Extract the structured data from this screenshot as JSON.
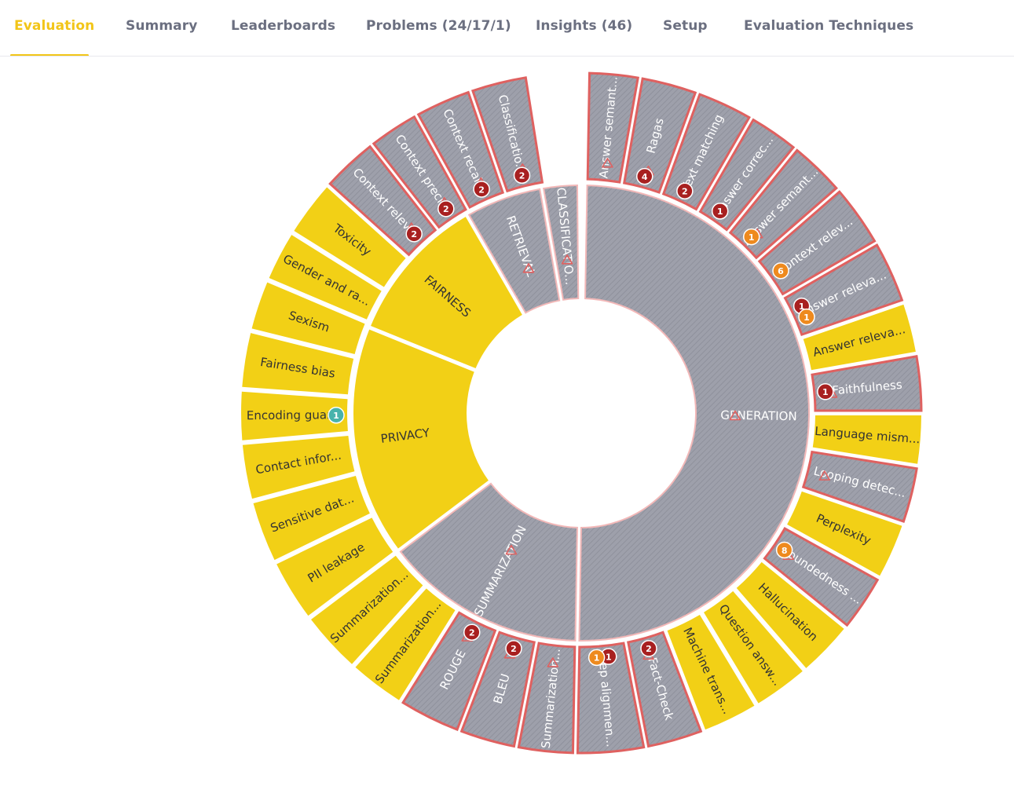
{
  "tabs": [
    {
      "label": "Evaluation",
      "active": true
    },
    {
      "label": "Summary",
      "active": false
    },
    {
      "label": "Leaderboards",
      "active": false
    },
    {
      "label": "Problems (24/17/1)",
      "active": false
    },
    {
      "label": "Insights (46)",
      "active": false
    },
    {
      "label": "Setup",
      "active": false
    },
    {
      "label": "Evaluation Techniques",
      "active": false
    }
  ],
  "colors": {
    "accent": "#f2c518",
    "yellow_fill": "#f2d016",
    "grey_fill": "#9ea0ab",
    "problem_border": "#df6160",
    "badge_red": "#a82020",
    "badge_orange": "#ee8a1e",
    "badge_teal": "#48b3ac",
    "tab_text": "#6b6f80"
  },
  "sunburst": {
    "inner": [
      {
        "label": "GENERATION",
        "status": "problem",
        "warning": true
      },
      {
        "label": "SUMMARIZATION",
        "status": "problem",
        "warning": true
      },
      {
        "label": "PRIVACY",
        "status": "ok",
        "warning": false
      },
      {
        "label": "FAIRNESS",
        "status": "ok",
        "warning": false
      },
      {
        "label": "RETRIEVAL",
        "status": "problem",
        "warning": true
      },
      {
        "label": "CLASSIFICATIO...",
        "status": "problem",
        "warning": true
      }
    ],
    "outer": [
      {
        "label": "Answer semant...",
        "parent": "GENERATION",
        "status": "problem",
        "warning": true,
        "badges": []
      },
      {
        "label": "Ragas",
        "parent": "GENERATION",
        "status": "problem",
        "warning": true,
        "badges": [
          {
            "value": "4",
            "color": "red"
          }
        ]
      },
      {
        "label": "Text matching",
        "parent": "GENERATION",
        "status": "problem",
        "warning": false,
        "badges": [
          {
            "value": "2",
            "color": "red"
          }
        ]
      },
      {
        "label": "Answer correc...",
        "parent": "GENERATION",
        "status": "problem",
        "warning": false,
        "badges": [
          {
            "value": "1",
            "color": "red"
          }
        ]
      },
      {
        "label": "Answer semant...",
        "parent": "GENERATION",
        "status": "problem",
        "warning": true,
        "badges": [
          {
            "value": "1",
            "color": "orange"
          }
        ]
      },
      {
        "label": "Context relev...",
        "parent": "GENERATION",
        "status": "problem",
        "warning": false,
        "badges": [
          {
            "value": "6",
            "color": "orange"
          }
        ]
      },
      {
        "label": "Answer releva...",
        "parent": "GENERATION",
        "status": "problem",
        "warning": false,
        "badges": [
          {
            "value": "1",
            "color": "red"
          },
          {
            "value": "1",
            "color": "orange"
          }
        ]
      },
      {
        "label": "Answer releva...",
        "parent": "GENERATION",
        "status": "ok",
        "warning": false,
        "badges": []
      },
      {
        "label": "Faithfulness",
        "parent": "GENERATION",
        "status": "problem",
        "warning": true,
        "badges": [
          {
            "value": "1",
            "color": "red"
          }
        ]
      },
      {
        "label": "Language mism...",
        "parent": "GENERATION",
        "status": "ok",
        "warning": false,
        "badges": []
      },
      {
        "label": "Looping detec...",
        "parent": "GENERATION",
        "status": "problem",
        "warning": true,
        "badges": []
      },
      {
        "label": "Perplexity",
        "parent": "GENERATION",
        "status": "ok",
        "warning": false,
        "badges": []
      },
      {
        "label": "Groundedness ...",
        "parent": "GENERATION",
        "status": "problem",
        "warning": true,
        "badges": [
          {
            "value": "8",
            "color": "orange"
          }
        ]
      },
      {
        "label": "Hallucination",
        "parent": "GENERATION",
        "status": "ok",
        "warning": false,
        "badges": []
      },
      {
        "label": "Question answ...",
        "parent": "GENERATION",
        "status": "ok",
        "warning": false,
        "badges": []
      },
      {
        "label": "Machine trans...",
        "parent": "GENERATION",
        "status": "ok",
        "warning": false,
        "badges": []
      },
      {
        "label": "Fact-Check",
        "parent": "GENERATION",
        "status": "problem",
        "warning": true,
        "badges": [
          {
            "value": "2",
            "color": "red"
          }
        ]
      },
      {
        "label": "Step alignmen...",
        "parent": "GENERATION",
        "status": "problem",
        "warning": false,
        "badges": [
          {
            "value": "1",
            "color": "red"
          },
          {
            "value": "1",
            "color": "orange"
          }
        ]
      },
      {
        "label": "Summarization...",
        "parent": "SUMMARIZATION",
        "status": "problem",
        "warning": true,
        "badges": []
      },
      {
        "label": "BLEU",
        "parent": "SUMMARIZATION",
        "status": "problem",
        "warning": true,
        "badges": [
          {
            "value": "2",
            "color": "red"
          }
        ]
      },
      {
        "label": "ROUGE",
        "parent": "SUMMARIZATION",
        "status": "problem",
        "warning": true,
        "badges": [
          {
            "value": "2",
            "color": "red"
          }
        ]
      },
      {
        "label": "Summarization...",
        "parent": "SUMMARIZATION",
        "status": "ok",
        "warning": false,
        "badges": []
      },
      {
        "label": "Summarization...",
        "parent": "SUMMARIZATION",
        "status": "ok",
        "warning": false,
        "badges": []
      },
      {
        "label": "PII leakage",
        "parent": "PRIVACY",
        "status": "ok",
        "warning": false,
        "badges": []
      },
      {
        "label": "Sensitive dat...",
        "parent": "PRIVACY",
        "status": "ok",
        "warning": false,
        "badges": []
      },
      {
        "label": "Contact infor...",
        "parent": "PRIVACY",
        "status": "ok",
        "warning": false,
        "badges": []
      },
      {
        "label": "Encoding guar...",
        "parent": "PRIVACY",
        "status": "ok",
        "warning": false,
        "badges": [
          {
            "value": "1",
            "color": "teal"
          }
        ]
      },
      {
        "label": "Fairness bias",
        "parent": "FAIRNESS",
        "status": "ok",
        "warning": false,
        "badges": []
      },
      {
        "label": "Sexism",
        "parent": "FAIRNESS",
        "status": "ok",
        "warning": false,
        "badges": []
      },
      {
        "label": "Gender and ra...",
        "parent": "FAIRNESS",
        "status": "ok",
        "warning": false,
        "badges": []
      },
      {
        "label": "Toxicity",
        "parent": "FAIRNESS",
        "status": "ok",
        "warning": false,
        "badges": []
      },
      {
        "label": "Context relev...",
        "parent": "RETRIEVAL",
        "status": "problem",
        "warning": true,
        "badges": [
          {
            "value": "2",
            "color": "red"
          }
        ]
      },
      {
        "label": "Context preci...",
        "parent": "RETRIEVAL",
        "status": "problem",
        "warning": true,
        "badges": [
          {
            "value": "2",
            "color": "red"
          }
        ]
      },
      {
        "label": "Context recal...",
        "parent": "RETRIEVAL",
        "status": "problem",
        "warning": true,
        "badges": [
          {
            "value": "2",
            "color": "red"
          }
        ]
      },
      {
        "label": "Classificatio...",
        "parent": "CLASSIFICATIO...",
        "status": "problem",
        "warning": true,
        "badges": [
          {
            "value": "2",
            "color": "red"
          }
        ]
      }
    ]
  }
}
